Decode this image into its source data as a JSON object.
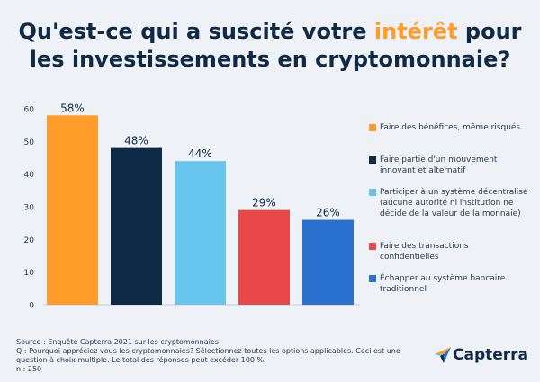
{
  "title": {
    "part1": "Qu'est-ce qui a suscité votre ",
    "highlight": "intérêt",
    "part2": " pour",
    "line2": "les investissements en cryptomonnaie?"
  },
  "chart_data": {
    "type": "bar",
    "categories": [
      "Faire des bénéfices, même risqués",
      "Faire partie d'un mouvement innovant et alternatif",
      "Participer à un système décentralisé (aucune autorité ni institution ne décide de la valeur de la monnaie)",
      "Faire des transactions confidentielles",
      "Échapper au système bancaire traditionnel"
    ],
    "values": [
      58,
      48,
      44,
      29,
      26
    ],
    "value_labels": [
      "58%",
      "48%",
      "44%",
      "29%",
      "26%"
    ],
    "colors": [
      "#ff9d28",
      "#0e2a47",
      "#68c5ee",
      "#e84848",
      "#2a70cf"
    ],
    "ylim": [
      0,
      60
    ],
    "yticks": [
      0,
      10,
      20,
      30,
      40,
      50,
      60
    ],
    "title": "",
    "xlabel": "",
    "ylabel": "",
    "grid": false,
    "legend_position": "right"
  },
  "footer": {
    "source": "Source : Enquête Capterra 2021 sur les cryptomonnaies",
    "question": "Q : Pourquoi appréciez-vous les cryptomonnaies? Sélectionnez toutes les options applicables. Ceci est une question à choix multiple. Le total des réponses peut excéder 100 %.",
    "n": "n : 250"
  },
  "logo": {
    "text": "Capterra",
    "icon": "capterra-arrow-icon"
  }
}
